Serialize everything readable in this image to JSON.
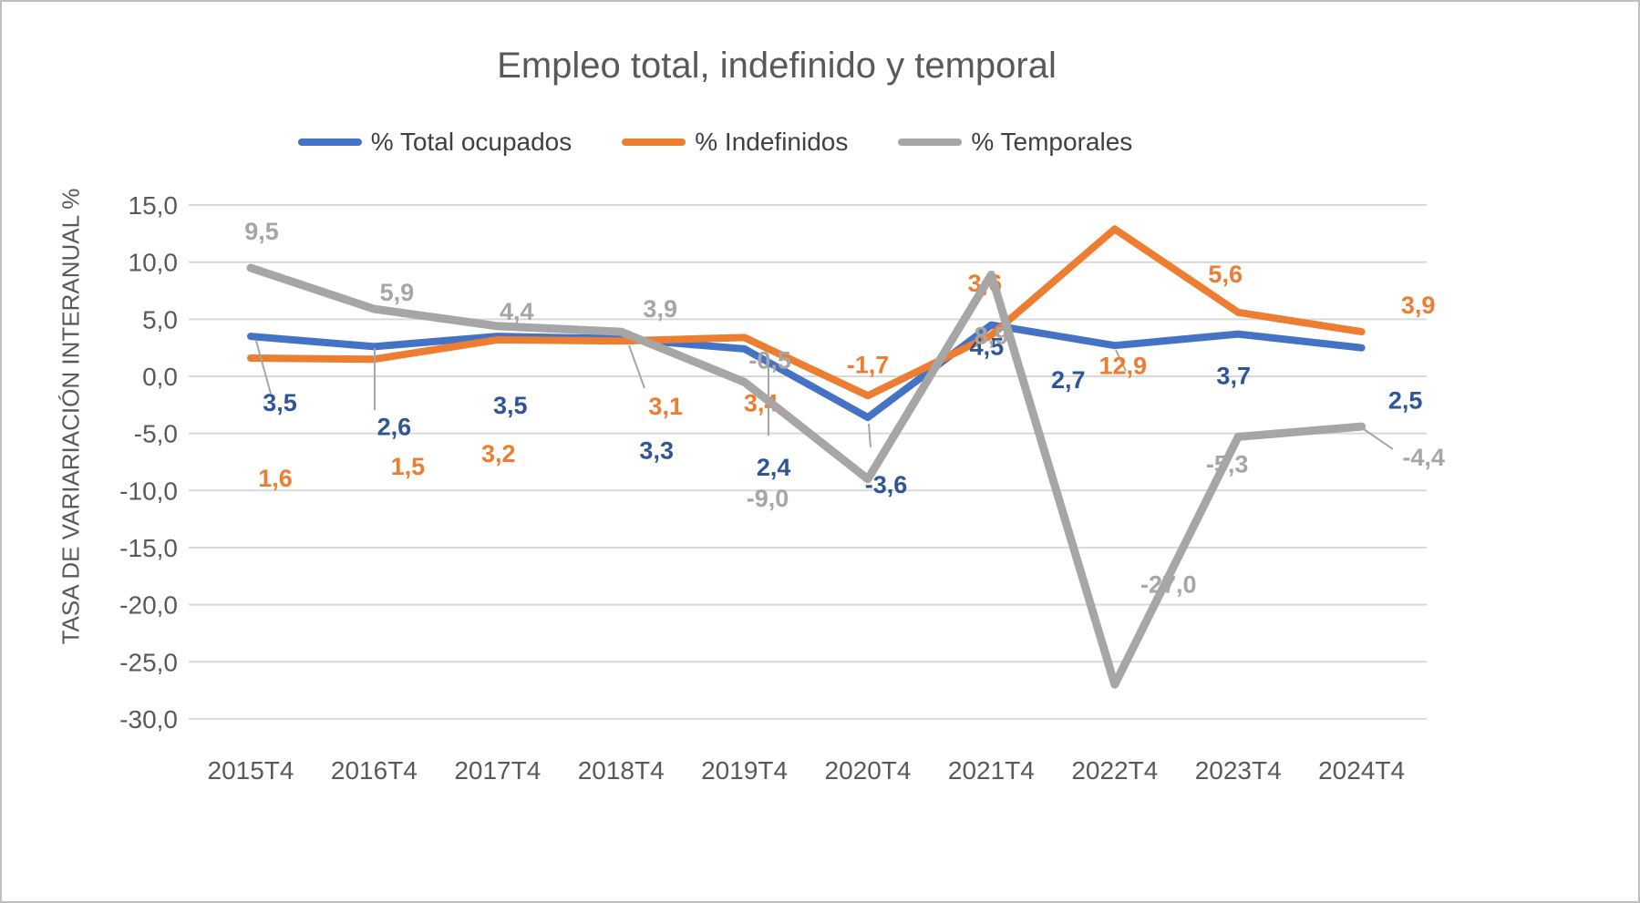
{
  "title": "Empleo total, indefinido y temporal",
  "y_axis": {
    "title": "TASA DE VARIARIACIÓN INTERANUAL %",
    "ticks": [
      {
        "value": 15,
        "label": "15,0"
      },
      {
        "value": 10,
        "label": "10,0"
      },
      {
        "value": 5,
        "label": "5,0"
      },
      {
        "value": 0,
        "label": "0,0"
      },
      {
        "value": -5,
        "label": "-5,0"
      },
      {
        "value": -10,
        "label": "-10,0"
      },
      {
        "value": -15,
        "label": "-15,0"
      },
      {
        "value": -20,
        "label": "-20,0"
      },
      {
        "value": -25,
        "label": "-25,0"
      },
      {
        "value": -30,
        "label": "-30,0"
      }
    ]
  },
  "x_axis": {
    "categories": [
      "2015T4",
      "2016T4",
      "2017T4",
      "2018T4",
      "2019T4",
      "2020T4",
      "2021T4",
      "2022T4",
      "2023T4",
      "2024T4"
    ]
  },
  "colors": {
    "grid": "#D9D9D9",
    "axis_text": "#595959",
    "legend_text": "#404040",
    "leader": "#A6A6A6",
    "border": "#BFBFBF"
  },
  "chart_data": {
    "type": "line",
    "title": "Empleo total, indefinido y temporal",
    "ylabel": "TASA DE VARIARIACIÓN INTERANUAL %",
    "categories": [
      "2015T4",
      "2016T4",
      "2017T4",
      "2018T4",
      "2019T4",
      "2020T4",
      "2021T4",
      "2022T4",
      "2023T4",
      "2024T4"
    ],
    "series": [
      {
        "name": "% Total ocupados",
        "color": "#4472C4",
        "label_color": "#2E5596",
        "values": [
          3.5,
          2.6,
          3.5,
          3.3,
          2.4,
          -3.6,
          4.5,
          2.7,
          3.7,
          2.5
        ],
        "labels": [
          "3,5",
          "2,6",
          "3,5",
          "3,3",
          "2,4",
          "-3,6",
          "4,5",
          "2,7",
          "3,7",
          "2,5"
        ]
      },
      {
        "name": "% Indefinidos",
        "color": "#ED7D31",
        "label_color": "#ED7D31",
        "values": [
          1.6,
          1.5,
          3.2,
          3.1,
          3.4,
          -1.7,
          3.6,
          12.9,
          5.6,
          3.9
        ],
        "labels": [
          "1,6",
          "1,5",
          "3,2",
          "3,1",
          "3,4",
          "-1,7",
          "3,6",
          "12,9",
          "5,6",
          "3,9"
        ]
      },
      {
        "name": "% Temporales",
        "color": "#A6A6A6",
        "label_color": "#A6A6A6",
        "values": [
          9.5,
          5.9,
          4.4,
          3.9,
          -0.5,
          -9.0,
          8.9,
          -27.0,
          -5.3,
          -4.4
        ],
        "labels": [
          "9,5",
          "5,9",
          "4,4",
          "3,9",
          "-0,5",
          "-9,0",
          "8,9",
          "-27,0",
          "-5,3",
          "-4,4"
        ]
      }
    ],
    "ylim": [
      -30,
      15
    ],
    "ytick_step": 5,
    "grid": true,
    "legend_position": "top"
  }
}
